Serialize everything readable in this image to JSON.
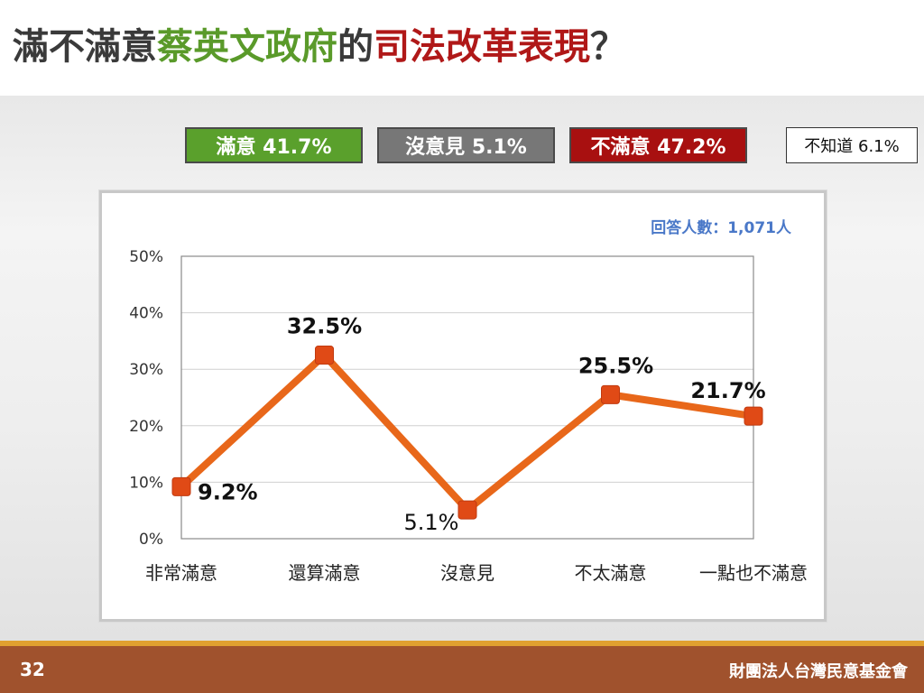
{
  "title": {
    "part1": "滿不滿意",
    "part2": "蔡英文政府",
    "part3": "的",
    "part4": "司法改革表現",
    "part5": "？"
  },
  "legend": {
    "satisfied": "滿意 41.7%",
    "no_opinion": "沒意見 5.1%",
    "dissatisfied": "不滿意 47.2%",
    "dont_know": "不知道 6.1%"
  },
  "colors": {
    "satisfied": "#5aa02c",
    "no_opinion": "#777777",
    "dissatisfied": "#a81010",
    "line": "#e8671a",
    "marker": "#e04a16",
    "respondents": "#4a78c8"
  },
  "respondents": "回答人數：1,071人",
  "chart_data": {
    "type": "line",
    "categories": [
      "非常滿意",
      "還算滿意",
      "沒意見",
      "不太滿意",
      "一點也不滿意"
    ],
    "values": [
      9.2,
      32.5,
      5.1,
      25.5,
      21.7
    ],
    "data_labels": [
      "9.2%",
      "32.5%",
      "5.1%",
      "25.5%",
      "21.7%"
    ],
    "y_ticks": [
      "0%",
      "10%",
      "20%",
      "30%",
      "40%",
      "50%"
    ],
    "ylim": [
      0,
      50
    ],
    "grid": true,
    "legend": "top"
  },
  "footer": {
    "page_number": "32",
    "organization": "財團法人台灣民意基金會"
  }
}
